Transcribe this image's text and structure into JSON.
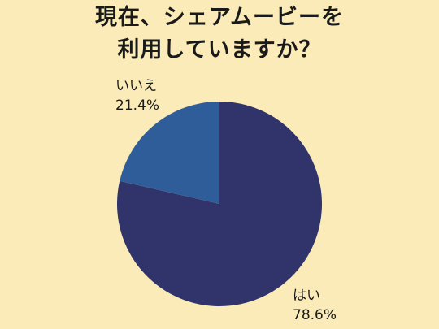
{
  "title_lines": [
    "現在、シェアムービーを",
    "利用していますか？"
  ],
  "chart_data": {
    "type": "pie",
    "title": "現在、シェアムービーを利用していますか？",
    "start_angle_deg": 0,
    "direction": "clockwise",
    "slices": [
      {
        "label": "はい",
        "value": 78.6,
        "value_label": "78.6%",
        "color": "#30346a"
      },
      {
        "label": "いいえ",
        "value": 21.4,
        "value_label": "21.4%",
        "color": "#2e5d99"
      }
    ]
  }
}
